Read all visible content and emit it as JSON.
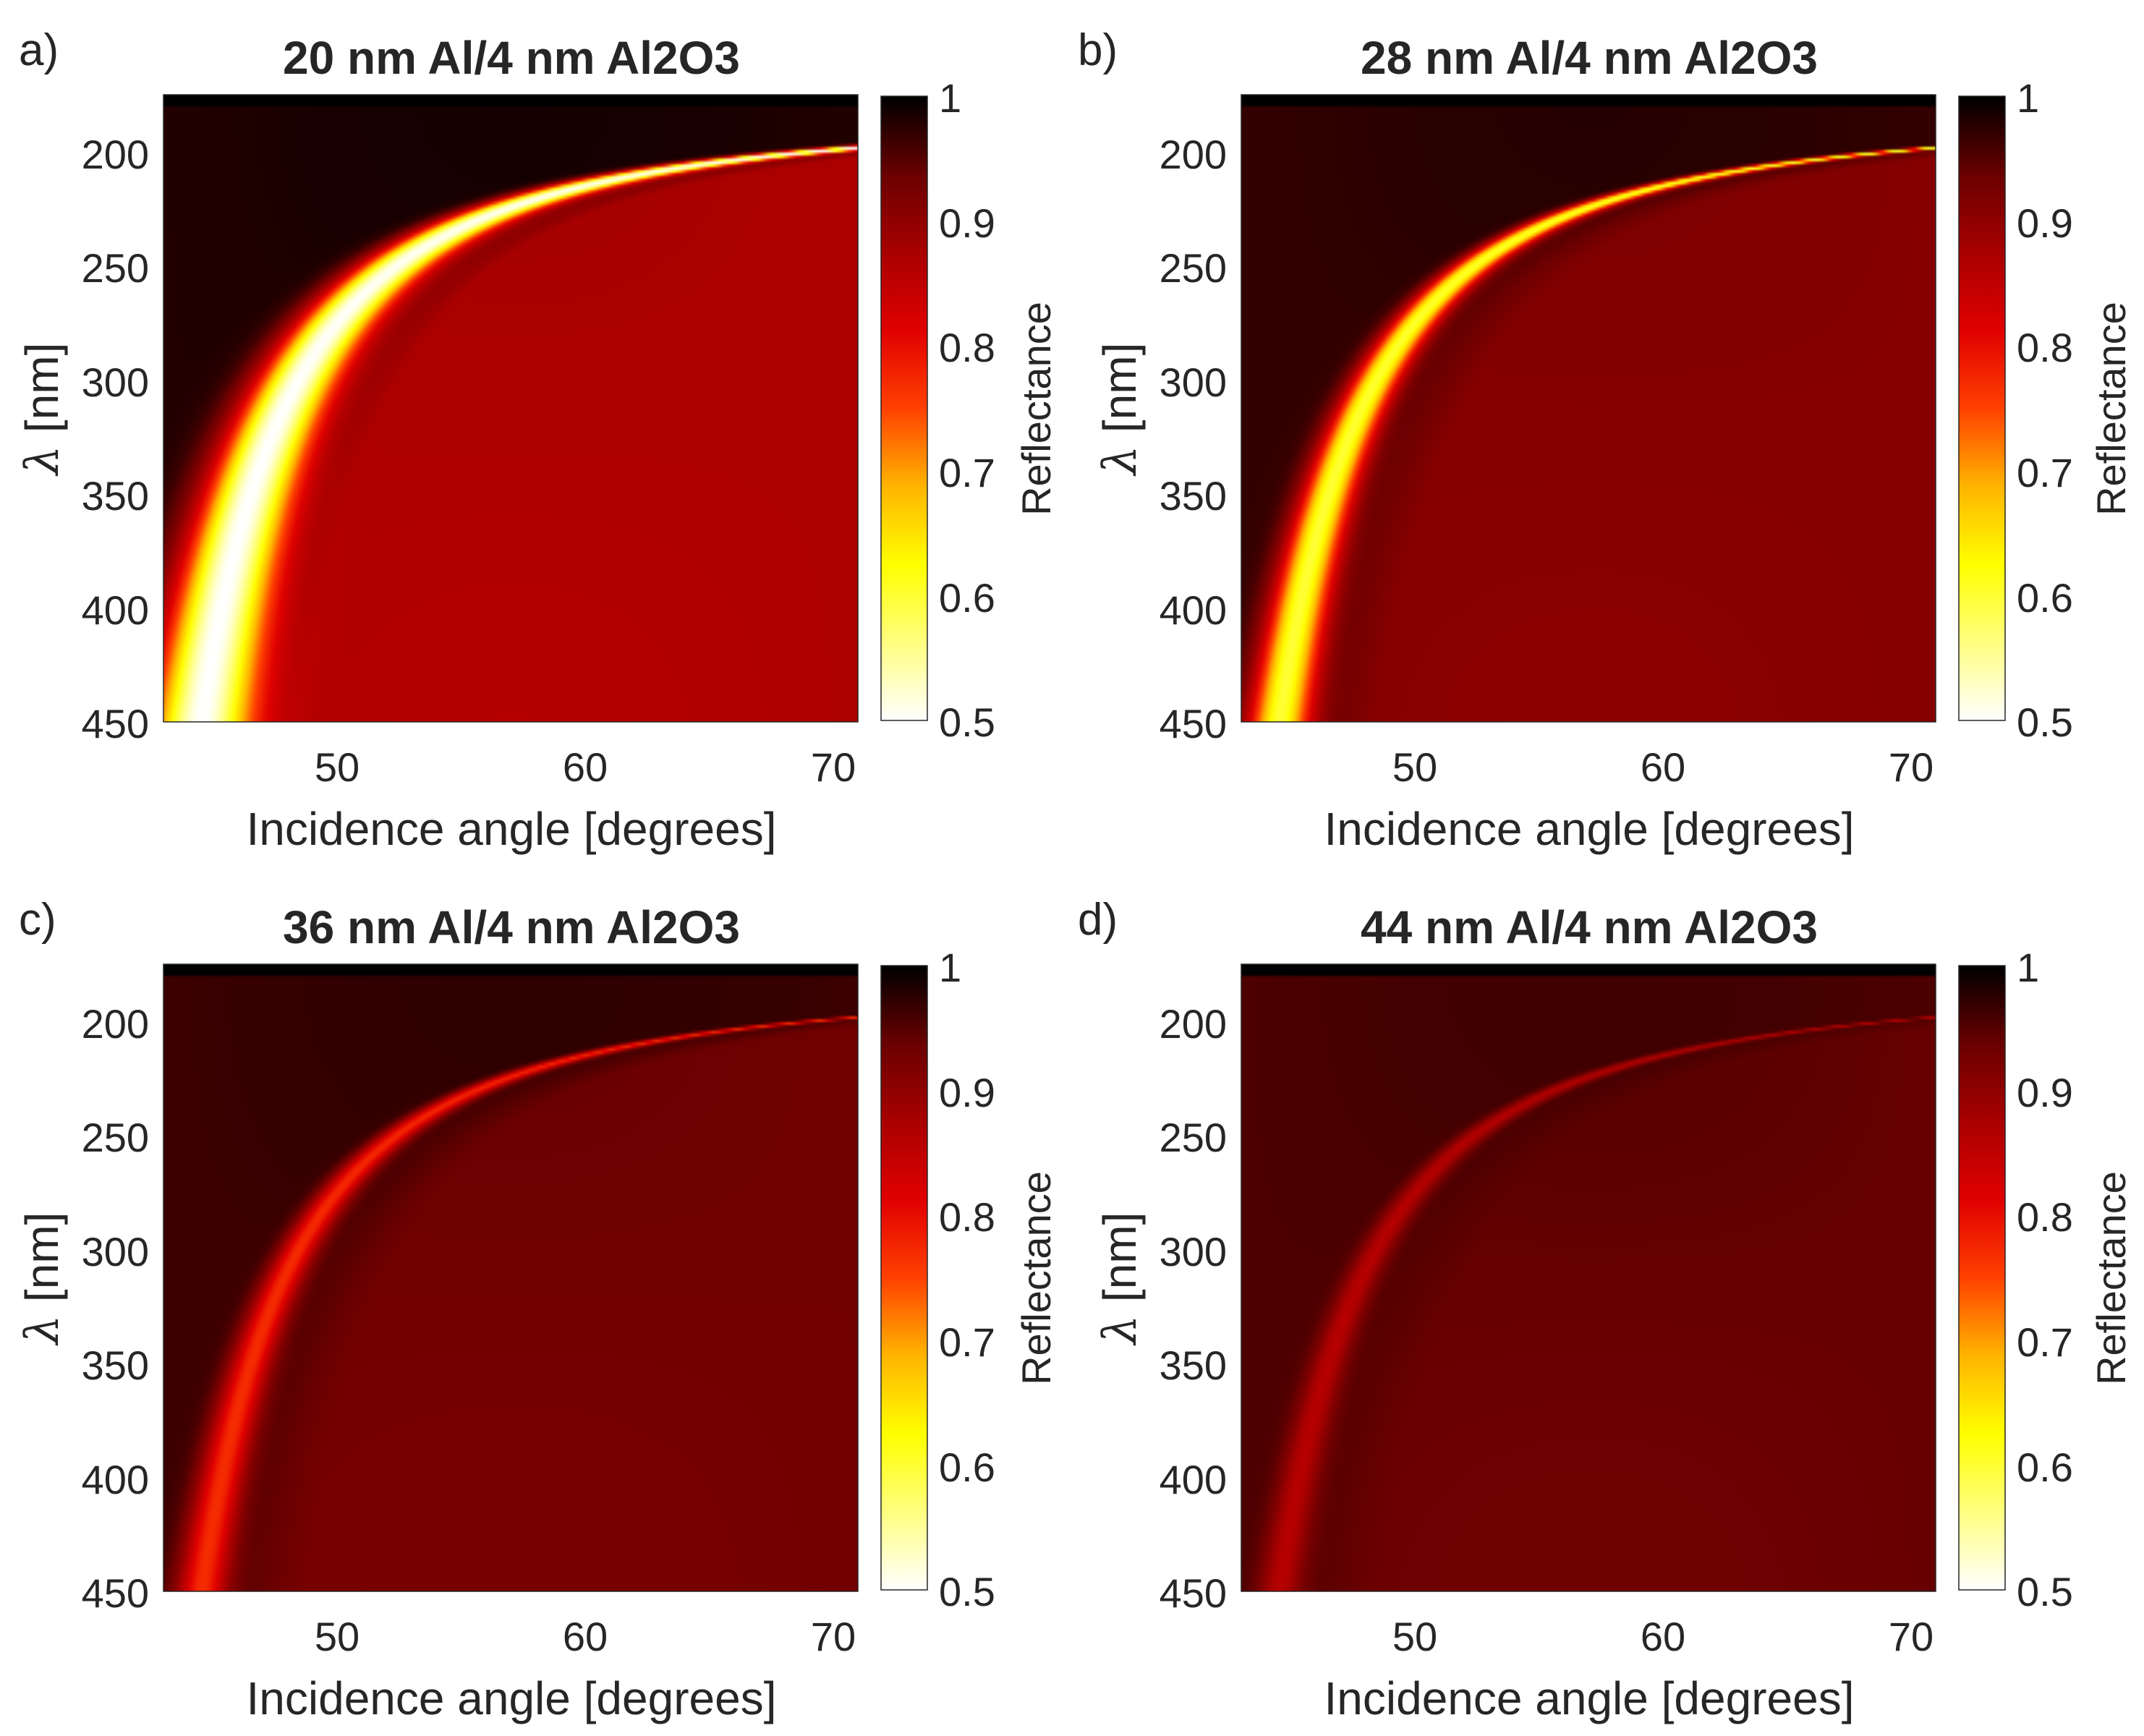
{
  "chart_data": [
    {
      "type": "heatmap",
      "panel_label": "a)",
      "title": "20 nm Al/4 nm Al2O3",
      "xlabel": "Incidence angle [degrees]",
      "ylabel_symbol": "λ",
      "ylabel_unit": "[nm]",
      "colorbar_label": "Reflectance",
      "xlim": [
        43,
        71
      ],
      "ylim": [
        180,
        450
      ],
      "x_ticks": [
        "50",
        "60",
        "70"
      ],
      "y_ticks": [
        "200",
        "250",
        "300",
        "350",
        "400",
        "450"
      ],
      "clim": [
        0.5,
        1
      ],
      "colorbar_ticks": [
        "0.5",
        "0.6",
        "0.7",
        "0.8",
        "0.9",
        "1"
      ],
      "colormap": "hot (reversed)",
      "resonance": {
        "min_reflectance": 0.5,
        "width_deg": 2.6
      },
      "background_reflectance": 0.87,
      "top_left_reflectance": 0.98
    },
    {
      "type": "heatmap",
      "panel_label": "b)",
      "title": "28 nm Al/4 nm Al2O3",
      "xlabel": "Incidence angle [degrees]",
      "ylabel_symbol": "λ",
      "ylabel_unit": "[nm]",
      "colorbar_label": "Reflectance",
      "xlim": [
        43,
        71
      ],
      "ylim": [
        180,
        450
      ],
      "x_ticks": [
        "50",
        "60",
        "70"
      ],
      "y_ticks": [
        "200",
        "250",
        "300",
        "350",
        "400",
        "450"
      ],
      "clim": [
        0.5,
        1
      ],
      "colorbar_ticks": [
        "0.5",
        "0.6",
        "0.7",
        "0.8",
        "0.9",
        "1"
      ],
      "colormap": "hot (reversed)",
      "resonance": {
        "min_reflectance": 0.6,
        "width_deg": 1.5
      },
      "background_reflectance": 0.91,
      "top_left_reflectance": 0.97
    },
    {
      "type": "heatmap",
      "panel_label": "c)",
      "title": "36 nm Al/4 nm Al2O3",
      "xlabel": "Incidence angle [degrees]",
      "ylabel_symbol": "λ",
      "ylabel_unit": "[nm]",
      "colorbar_label": "Reflectance",
      "xlim": [
        43,
        71
      ],
      "ylim": [
        180,
        450
      ],
      "x_ticks": [
        "50",
        "60",
        "70"
      ],
      "y_ticks": [
        "200",
        "250",
        "300",
        "350",
        "400",
        "450"
      ],
      "clim": [
        0.5,
        1
      ],
      "colorbar_ticks": [
        "0.5",
        "0.6",
        "0.7",
        "0.8",
        "0.9",
        "1"
      ],
      "colormap": "hot (reversed)",
      "resonance": {
        "min_reflectance": 0.77,
        "width_deg": 1.2
      },
      "background_reflectance": 0.93,
      "top_left_reflectance": 0.965
    },
    {
      "type": "heatmap",
      "panel_label": "d)",
      "title": "44 nm Al/4 nm Al2O3",
      "xlabel": "Incidence angle [degrees]",
      "ylabel_symbol": "λ",
      "ylabel_unit": "[nm]",
      "colorbar_label": "Reflectance",
      "xlim": [
        43,
        71
      ],
      "ylim": [
        180,
        450
      ],
      "x_ticks": [
        "50",
        "60",
        "70"
      ],
      "y_ticks": [
        "200",
        "250",
        "300",
        "350",
        "400",
        "450"
      ],
      "clim": [
        0.5,
        1
      ],
      "colorbar_ticks": [
        "0.5",
        "0.6",
        "0.7",
        "0.8",
        "0.9",
        "1"
      ],
      "colormap": "hot (reversed)",
      "resonance": {
        "min_reflectance": 0.86,
        "width_deg": 1.0
      },
      "background_reflectance": 0.94,
      "top_left_reflectance": 0.955
    }
  ]
}
